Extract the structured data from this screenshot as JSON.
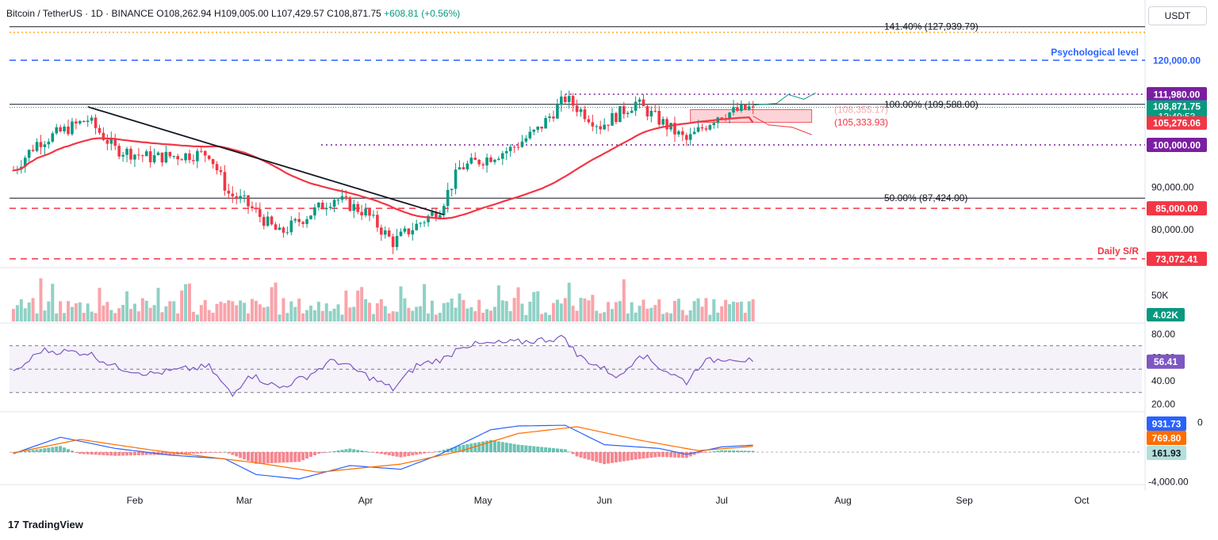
{
  "header": {
    "symbol": "Bitcoin / TetherUS · 1D · BINANCE",
    "open": "O108,262.94",
    "high": "H109,005.00",
    "low": "L107,429.57",
    "close": "C108,871.75",
    "change": "+608.81 (+0.56%)"
  },
  "currency_button": "USDT",
  "footer": {
    "logo": "17",
    "brand": "TradingView"
  },
  "colors": {
    "up": "#089981",
    "down": "#f23645",
    "ma": "#f23645",
    "trendline": "#131722",
    "rsi": "#7e57c2",
    "macd": "#2962ff",
    "signal": "#ff6d00",
    "psych_line": "#2962ff",
    "resistance_dots": "#7b1fa2",
    "support_dash": "#f23645"
  },
  "chart_data": [
    {
      "type": "candlestick",
      "pane": "price",
      "x_ticks": [
        "Feb",
        "Mar",
        "Apr",
        "May",
        "Jun",
        "Jul",
        "Aug",
        "Sep",
        "Oct"
      ],
      "price_axis_labels": [
        "90,000.00",
        "80,000.00"
      ],
      "ylim": [
        71000,
        132000
      ],
      "candles_ohlc_summary": {
        "start": "2025-01-01",
        "end": "2025-07-09",
        "waypoints": [
          {
            "date": "2025-01-01",
            "close": 94000
          },
          {
            "date": "2025-01-07",
            "close": 100500
          },
          {
            "date": "2025-01-20",
            "close": 106000
          },
          {
            "date": "2025-01-27",
            "close": 99000
          },
          {
            "date": "2025-02-05",
            "close": 97000
          },
          {
            "date": "2025-02-20",
            "close": 98000
          },
          {
            "date": "2025-02-25",
            "close": 88500
          },
          {
            "date": "2025-03-01",
            "close": 86500
          },
          {
            "date": "2025-03-10",
            "close": 79000
          },
          {
            "date": "2025-03-24",
            "close": 87500
          },
          {
            "date": "2025-04-01",
            "close": 84000
          },
          {
            "date": "2025-04-08",
            "close": 77000
          },
          {
            "date": "2025-04-20",
            "close": 85000
          },
          {
            "date": "2025-04-25",
            "close": 94500
          },
          {
            "date": "2025-05-08",
            "close": 99000
          },
          {
            "date": "2025-05-15",
            "close": 103500
          },
          {
            "date": "2025-05-22",
            "close": 111000
          },
          {
            "date": "2025-05-31",
            "close": 104500
          },
          {
            "date": "2025-06-09",
            "close": 110000
          },
          {
            "date": "2025-06-22",
            "close": 101000
          },
          {
            "date": "2025-06-30",
            "close": 107000
          },
          {
            "date": "2025-07-09",
            "close": 108871.75
          }
        ]
      },
      "moving_average": {
        "name": "",
        "last": 105276.06
      },
      "trendline": {
        "from": {
          "date": "2025-01-20",
          "price": 109000
        },
        "to": {
          "date": "2025-04-21",
          "price": 83500
        }
      },
      "horizontal_levels": [
        {
          "value": 127939.79,
          "label": "141.40% (127,939.79)",
          "style": "fib"
        },
        {
          "value": 120000,
          "label": "Psychological level",
          "tag": "120,000.00",
          "style": "dashed-blue"
        },
        {
          "value": 111980,
          "tag": "111,980.00",
          "style": "dotted-purple"
        },
        {
          "value": 109588,
          "label": "100.00% (109,588.00)",
          "style": "fib"
        },
        {
          "value": 100000,
          "tag": "100,000.00",
          "style": "dotted-purple"
        },
        {
          "value": 87424,
          "label": "50.00% (87,424.00)",
          "style": "fib"
        },
        {
          "value": 85000,
          "tag": "85,000.00",
          "style": "dashed-red"
        },
        {
          "value": 73072.41,
          "label": "Daily S/R",
          "tag": "73,072.41",
          "style": "dashed-red"
        }
      ],
      "zone": {
        "top": 108355.17,
        "bottom": 105333.93,
        "top_label": "(108,355.17)",
        "bottom_label": "(105,333.93)",
        "from": "2025-06-23",
        "to": "2025-07-24"
      },
      "projections": [
        {
          "color": "#089981",
          "points": [
            [
              "2025-07-09",
              109400
            ],
            [
              "2025-07-15",
              109800
            ],
            [
              "2025-07-18",
              111900
            ],
            [
              "2025-07-22",
              110800
            ],
            [
              "2025-07-25",
              112300
            ]
          ]
        },
        {
          "color": "#f23645",
          "points": [
            [
              "2025-07-09",
              106800
            ],
            [
              "2025-07-13",
              104700
            ],
            [
              "2025-07-19",
              104200
            ],
            [
              "2025-07-24",
              102400
            ]
          ]
        }
      ],
      "price_tags": {
        "close": "108,871.75",
        "countdown": "12:49:53",
        "ma": "105,276.06"
      }
    },
    {
      "type": "bar",
      "pane": "volume",
      "axis_label": "50K",
      "last": "4.02K"
    },
    {
      "type": "line",
      "pane": "rsi",
      "axis_labels": [
        "80.00",
        "60.00",
        "40.00",
        "20.00"
      ],
      "bands": [
        70,
        30
      ],
      "midline": 50,
      "ylim": [
        15,
        88
      ],
      "waypoints": [
        {
          "date": "2025-01-01",
          "value": 46
        },
        {
          "date": "2025-01-08",
          "value": 66
        },
        {
          "date": "2025-01-20",
          "value": 64
        },
        {
          "date": "2025-01-27",
          "value": 52
        },
        {
          "date": "2025-02-05",
          "value": 46
        },
        {
          "date": "2025-02-14",
          "value": 50
        },
        {
          "date": "2025-02-20",
          "value": 52
        },
        {
          "date": "2025-02-26",
          "value": 27
        },
        {
          "date": "2025-03-02",
          "value": 46
        },
        {
          "date": "2025-03-10",
          "value": 34
        },
        {
          "date": "2025-03-17",
          "value": 44
        },
        {
          "date": "2025-03-24",
          "value": 58
        },
        {
          "date": "2025-04-01",
          "value": 45
        },
        {
          "date": "2025-04-08",
          "value": 33
        },
        {
          "date": "2025-04-14",
          "value": 53
        },
        {
          "date": "2025-04-22",
          "value": 60
        },
        {
          "date": "2025-04-25",
          "value": 70
        },
        {
          "date": "2025-05-10",
          "value": 73
        },
        {
          "date": "2025-05-22",
          "value": 77
        },
        {
          "date": "2025-05-25",
          "value": 62
        },
        {
          "date": "2025-06-05",
          "value": 43
        },
        {
          "date": "2025-06-10",
          "value": 64
        },
        {
          "date": "2025-06-15",
          "value": 52
        },
        {
          "date": "2025-06-22",
          "value": 39
        },
        {
          "date": "2025-06-26",
          "value": 56
        },
        {
          "date": "2025-07-03",
          "value": 60
        },
        {
          "date": "2025-07-09",
          "value": 56.41
        }
      ],
      "last": "56.41"
    },
    {
      "type": "line",
      "pane": "macd",
      "axis_labels": [
        "-4,000.00"
      ],
      "axis_label_top": "0",
      "series": [
        {
          "name": "MACD",
          "last": "931.73"
        },
        {
          "name": "Signal",
          "last": "769.80"
        },
        {
          "name": "Histogram",
          "last": "161.93"
        }
      ],
      "ylim": [
        -5200,
        5200
      ],
      "waypoints_macd": [
        {
          "date": "2025-01-01",
          "value": -200
        },
        {
          "date": "2025-01-13",
          "value": 2000
        },
        {
          "date": "2025-01-27",
          "value": 500
        },
        {
          "date": "2025-02-10",
          "value": -400
        },
        {
          "date": "2025-02-24",
          "value": -900
        },
        {
          "date": "2025-03-04",
          "value": -3000
        },
        {
          "date": "2025-03-15",
          "value": -3600
        },
        {
          "date": "2025-03-28",
          "value": -1800
        },
        {
          "date": "2025-04-10",
          "value": -2300
        },
        {
          "date": "2025-04-20",
          "value": -300
        },
        {
          "date": "2025-05-03",
          "value": 3000
        },
        {
          "date": "2025-05-10",
          "value": 3500
        },
        {
          "date": "2025-05-22",
          "value": 3600
        },
        {
          "date": "2025-06-01",
          "value": 1000
        },
        {
          "date": "2025-06-15",
          "value": 500
        },
        {
          "date": "2025-06-22",
          "value": -300
        },
        {
          "date": "2025-07-01",
          "value": 700
        },
        {
          "date": "2025-07-09",
          "value": 931.73
        }
      ],
      "waypoints_signal": [
        {
          "date": "2025-01-01",
          "value": -100
        },
        {
          "date": "2025-01-18",
          "value": 1700
        },
        {
          "date": "2025-02-05",
          "value": 300
        },
        {
          "date": "2025-03-05",
          "value": -1500
        },
        {
          "date": "2025-03-20",
          "value": -2700
        },
        {
          "date": "2025-04-10",
          "value": -1600
        },
        {
          "date": "2025-04-25",
          "value": 100
        },
        {
          "date": "2025-05-10",
          "value": 2500
        },
        {
          "date": "2025-05-25",
          "value": 3400
        },
        {
          "date": "2025-06-10",
          "value": 1600
        },
        {
          "date": "2025-06-25",
          "value": 200
        },
        {
          "date": "2025-07-09",
          "value": 769.8
        }
      ]
    }
  ]
}
